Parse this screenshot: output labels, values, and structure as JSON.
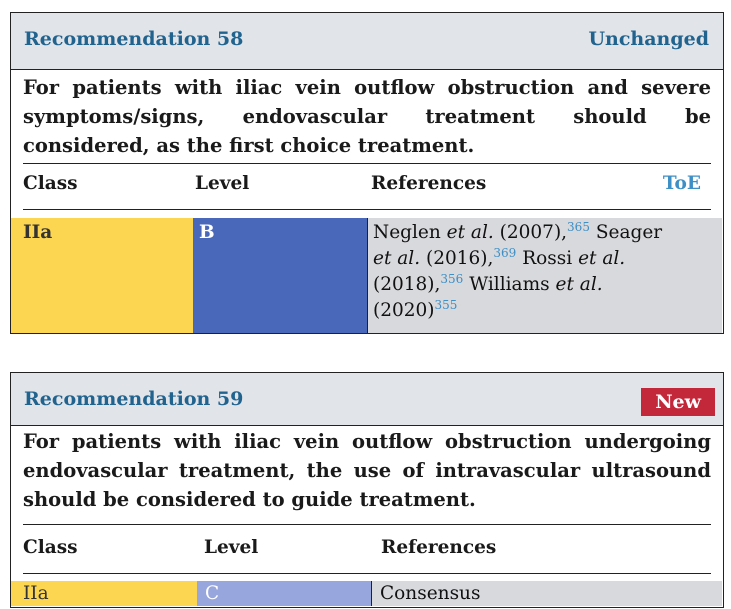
{
  "rec58": {
    "title": "Recommendation 58",
    "status": "Unchanged",
    "text_lines": [
      "For patients with iliac vein outflow obstruction and severe",
      "symptoms/signs,  endovascular  treatment  should  be",
      "considered, as the first choice treatment."
    ],
    "col_class": "Class",
    "col_level": "Level",
    "col_refs": "References",
    "col_toe": "ToE",
    "class": "IIa",
    "level": "B",
    "references": [
      {
        "author": "Neglen",
        "etal": "et al.",
        "year": "(2007),",
        "ref": "365"
      },
      {
        "author": "Seager",
        "etal": "et al.",
        "year": "(2016),",
        "ref": "369"
      },
      {
        "author": "Rossi",
        "etal": "et al.",
        "year": "(2018),",
        "ref": "356"
      },
      {
        "author": "Williams",
        "etal": "et al.",
        "year": "(2020)",
        "ref": "355"
      }
    ]
  },
  "rec59": {
    "title": "Recommendation 59",
    "status": "New",
    "text_lines": [
      "For patients with iliac vein outflow obstruction undergoing",
      "endovascular treatment, the use of intravascular ultrasound",
      "should be considered to guide treatment."
    ],
    "col_class": "Class",
    "col_level": "Level",
    "col_refs": "References",
    "class": "IIa",
    "level": "C",
    "references_text": "Consensus"
  },
  "colors": {
    "header_bg": "#e1e4e8",
    "title_blue": "#21638f",
    "toe_blue": "#3d8fc6",
    "class_yellow": "#fcd650",
    "level_b_blue": "#4a68b9",
    "level_c_blue": "#97a6dd",
    "ref_grey": "#d8d9dc",
    "new_badge_red": "#c3283a"
  }
}
